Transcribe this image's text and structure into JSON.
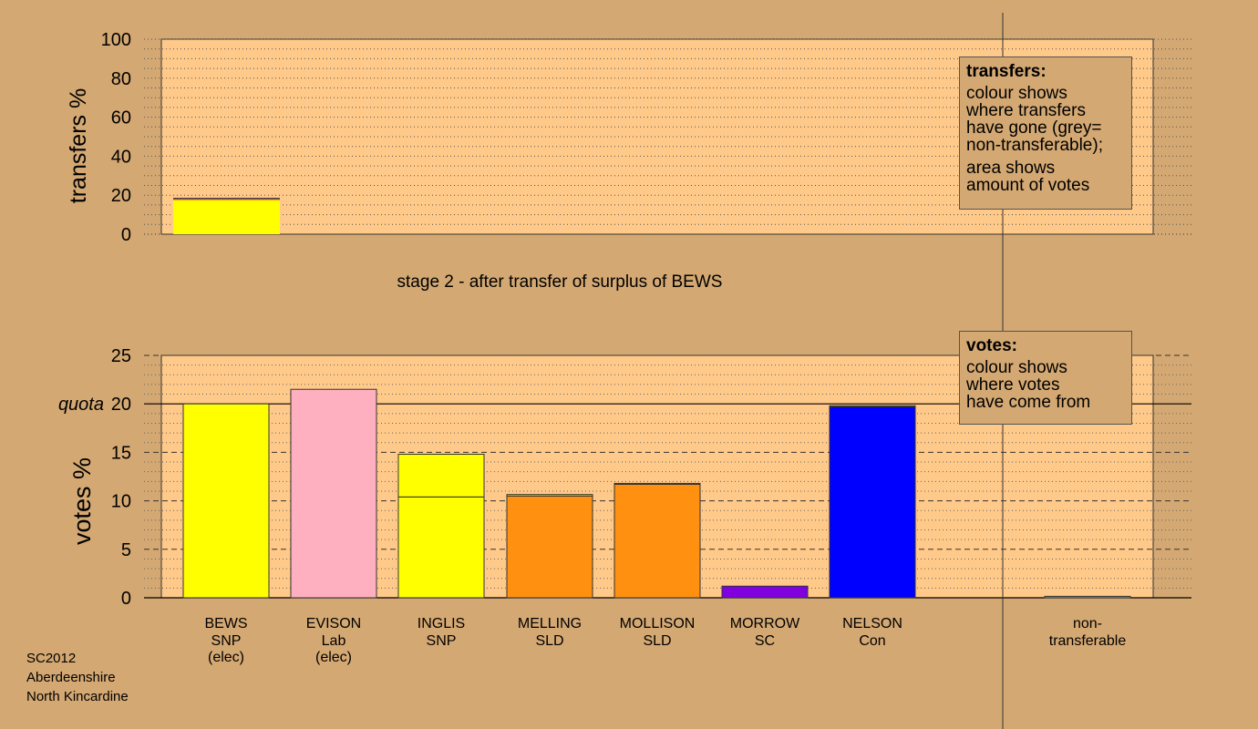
{
  "chart_data": [
    {
      "type": "bar",
      "ylabel": "transfers %",
      "ylim": [
        0,
        100
      ],
      "yticks": [
        0,
        20,
        40,
        60,
        80,
        100
      ],
      "categories": [
        "BEWS",
        "EVISON",
        "INGLIS",
        "MELLING",
        "MOLLISON",
        "MORROW",
        "NELSON",
        "non-transferable"
      ],
      "series": [
        {
          "values": [
            17.4,
            0,
            0,
            0,
            0,
            0,
            0,
            0
          ],
          "color": "#ffff00"
        },
        {
          "values": [
            0.6,
            0,
            0,
            0,
            0,
            0,
            0,
            0
          ],
          "color": "#ff8c00"
        },
        {
          "values": [
            0.4,
            0,
            0,
            0,
            0,
            0,
            0,
            0
          ],
          "color": "#0000ff"
        }
      ],
      "legend": {
        "title": "transfers:",
        "lines1": [
          "colour shows",
          "where transfers",
          "have gone (grey=",
          "non-transferable);"
        ],
        "lines2": [
          "area shows",
          "amount of votes"
        ]
      }
    },
    {
      "type": "bar",
      "title": "stage 2 - after transfer of surplus of BEWS",
      "ylabel": "votes %",
      "ylim": [
        0,
        25
      ],
      "yticks": [
        0,
        5,
        10,
        15,
        20,
        25
      ],
      "quota": 20,
      "quota_label": "quota",
      "categories": [
        {
          "name": "BEWS",
          "party": "SNP",
          "note": "(elec)"
        },
        {
          "name": "EVISON",
          "party": "Lab",
          "note": "(elec)"
        },
        {
          "name": "INGLIS",
          "party": "SNP",
          "note": ""
        },
        {
          "name": "MELLING",
          "party": "SLD",
          "note": ""
        },
        {
          "name": "MOLLISON",
          "party": "SLD",
          "note": ""
        },
        {
          "name": "MORROW",
          "party": "SC",
          "note": ""
        },
        {
          "name": "NELSON",
          "party": "Con",
          "note": ""
        },
        {
          "name": "non-",
          "party": "transferable",
          "note": ""
        }
      ],
      "bars": [
        {
          "segments": [
            {
              "value": 20.0,
              "color": "#ffff00"
            }
          ]
        },
        {
          "segments": [
            {
              "value": 21.5,
              "color": "#ffb0c0"
            }
          ]
        },
        {
          "segments": [
            {
              "value": 10.4,
              "color": "#ffff00"
            },
            {
              "value": 4.4,
              "color": "#ffff00"
            }
          ]
        },
        {
          "segments": [
            {
              "value": 10.5,
              "color": "#ff9010"
            },
            {
              "value": 0.15,
              "color": "#ffff00"
            }
          ]
        },
        {
          "segments": [
            {
              "value": 11.7,
              "color": "#ff9010"
            },
            {
              "value": 0.1,
              "color": "#ffff00"
            }
          ]
        },
        {
          "segments": [
            {
              "value": 1.2,
              "color": "#8000e0"
            }
          ]
        },
        {
          "segments": [
            {
              "value": 19.7,
              "color": "#0000ff"
            },
            {
              "value": 0.1,
              "color": "#ffff00"
            }
          ]
        },
        {
          "segments": [
            {
              "value": 0.15,
              "color": "#aaaaaa"
            }
          ]
        }
      ],
      "legend": {
        "title": "votes:",
        "lines1": [
          "colour shows",
          "where votes",
          "have come from"
        ]
      }
    }
  ],
  "footer": [
    "SC2012",
    "Aberdeenshire",
    "North Kincardine"
  ]
}
